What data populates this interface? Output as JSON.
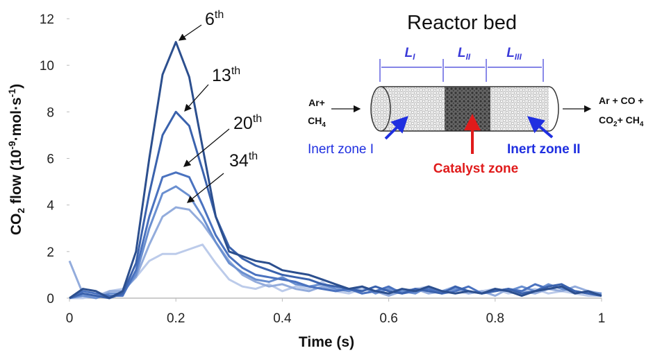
{
  "chart_data": {
    "type": "line",
    "x": [
      0,
      0.025,
      0.05,
      0.075,
      0.1,
      0.125,
      0.15,
      0.175,
      0.2,
      0.225,
      0.25,
      0.275,
      0.3,
      0.325,
      0.35,
      0.375,
      0.4,
      0.425,
      0.45,
      0.475,
      0.5,
      0.525,
      0.55,
      0.575,
      0.6,
      0.625,
      0.65,
      0.675,
      0.7,
      0.725,
      0.75,
      0.775,
      0.8,
      0.825,
      0.85,
      0.875,
      0.9,
      0.925,
      0.95,
      0.975,
      1
    ],
    "series": [
      {
        "color": "#2c4f8e",
        "values": [
          0,
          0.4,
          0.3,
          0,
          0.3,
          2,
          6,
          9.6,
          11,
          9.5,
          6.5,
          3.5,
          2,
          1.8,
          1.6,
          1.5,
          1.2,
          1.1,
          1,
          0.8,
          0.6,
          0.4,
          0.5,
          0.3,
          0.2,
          0.4,
          0.3,
          0.5,
          0.3,
          0.2,
          0.3,
          0.2,
          0.4,
          0.3,
          0.1,
          0.3,
          0.4,
          0.5,
          0.2,
          0.3,
          0.1
        ]
      },
      {
        "color": "#3a62ad",
        "values": [
          0,
          0.2,
          0.1,
          0,
          0.2,
          1.5,
          4.5,
          7,
          8,
          7.4,
          5.5,
          3.5,
          2.2,
          1.7,
          1.4,
          1.2,
          1,
          0.9,
          0.8,
          0.6,
          0.5,
          0.4,
          0.3,
          0.5,
          0.3,
          0.2,
          0.4,
          0.3,
          0.2,
          0.5,
          0.3,
          0.2,
          0.3,
          0.4,
          0.2,
          0.3,
          0.5,
          0.6,
          0.3,
          0.2,
          0.1
        ]
      },
      {
        "color": "#4a72bf",
        "values": [
          0,
          0.3,
          0.2,
          0.1,
          0.1,
          1.2,
          3.5,
          5.2,
          5.4,
          5.2,
          4,
          2.7,
          1.8,
          1.3,
          1,
          0.9,
          0.8,
          0.7,
          0.5,
          0.4,
          0.3,
          0.4,
          0.2,
          0.3,
          0.5,
          0.2,
          0.3,
          0.4,
          0.2,
          0.3,
          0.5,
          0.2,
          0.3,
          0.4,
          0.3,
          0.6,
          0.4,
          0.5,
          0.3,
          0.2,
          0.1
        ]
      },
      {
        "color": "#6a8fd0",
        "values": [
          0,
          0.1,
          0,
          0.2,
          0.2,
          1,
          3,
          4.5,
          4.8,
          4.4,
          3.5,
          2.4,
          1.5,
          1.1,
          0.8,
          0.7,
          0.9,
          0.6,
          0.5,
          0.6,
          0.4,
          0.3,
          0.5,
          0.2,
          0.4,
          0.3,
          0.2,
          0.5,
          0.3,
          0.4,
          0.3,
          0.2,
          0.4,
          0.3,
          0.5,
          0.3,
          0.6,
          0.4,
          0.3,
          0.2,
          0.2
        ]
      },
      {
        "color": "#93acdc",
        "values": [
          1.6,
          0.2,
          0,
          0.3,
          0.3,
          0.9,
          2.3,
          3.5,
          3.9,
          3.8,
          3.2,
          2.4,
          1.6,
          1,
          0.7,
          0.5,
          0.6,
          0.4,
          0.3,
          0.5,
          0.3,
          0.4,
          0.2,
          0.3,
          0.1,
          0.3,
          0.4,
          0.2,
          0.3,
          0.5,
          0.2,
          0.3,
          0.1,
          0.4,
          0.3,
          0.2,
          0.4,
          0.3,
          0.5,
          0.3,
          0.2
        ]
      },
      {
        "color": "#bccbea",
        "values": [
          0,
          0,
          0.1,
          0.3,
          0.4,
          0.9,
          1.6,
          1.9,
          1.9,
          2.1,
          2.3,
          1.5,
          0.8,
          0.5,
          0.4,
          0.6,
          0.3,
          0.5,
          0.4,
          0.7,
          0.3,
          0.2,
          0.4,
          0.3,
          0.2,
          0.3,
          0.4,
          0.5,
          0.2,
          0.3,
          0.2,
          0.3,
          0.4,
          0.2,
          0.3,
          0.4,
          0.2,
          0.3,
          0.2,
          0.1,
          0.1
        ]
      }
    ],
    "xlim": [
      0,
      1
    ],
    "xticks": [
      0,
      0.2,
      0.4,
      0.6,
      0.8,
      1
    ],
    "ylim": [
      0,
      12
    ],
    "yticks": [
      0,
      2,
      4,
      6,
      8,
      10,
      12
    ],
    "xlabel": "Time (s)",
    "ylabel": {
      "a": "CO",
      "a_sub": "2",
      "b": " flow (10",
      "b_sup": "-9",
      "c": "·mol·s",
      "c_sup": "-1",
      "d": ")"
    },
    "annotations": [
      {
        "text": "6",
        "sup": "th"
      },
      {
        "text": "13",
        "sup": "th"
      },
      {
        "text": "20",
        "sup": "th"
      },
      {
        "text": "34",
        "sup": "th"
      }
    ]
  },
  "inset": {
    "title": "Reactor bed",
    "lengths": [
      {
        "text": "L",
        "sub": "I"
      },
      {
        "text": "L",
        "sub": "II"
      },
      {
        "text": "L",
        "sub": "III"
      }
    ],
    "inlet": {
      "line1": "Ar+",
      "line2": "CH",
      "line2_sub": "4"
    },
    "outlet": {
      "line1": "Ar + CO +",
      "line2a": "CO",
      "line2a_sub": "2",
      "line2b": "+ CH",
      "line2b_sub": "4"
    },
    "zones": [
      "Inert zone I",
      "Catalyst zone",
      "Inert zone II"
    ]
  }
}
